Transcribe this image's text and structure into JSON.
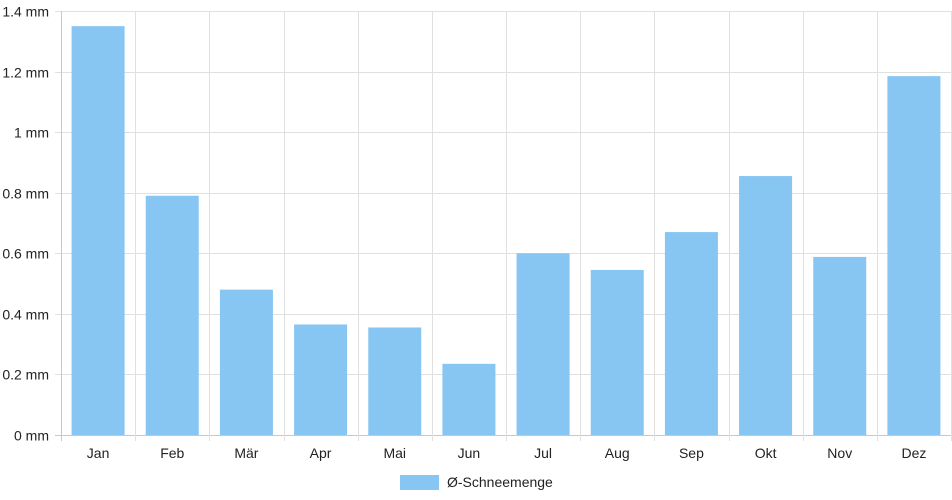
{
  "chart_data": {
    "type": "bar",
    "categories": [
      "Jan",
      "Feb",
      "Mär",
      "Apr",
      "Mai",
      "Jun",
      "Jul",
      "Aug",
      "Sep",
      "Okt",
      "Nov",
      "Dez"
    ],
    "series": [
      {
        "name": "Ø-Schneemenge",
        "values": [
          1.35,
          0.79,
          0.48,
          0.365,
          0.355,
          0.235,
          0.6,
          0.545,
          0.67,
          0.855,
          0.588,
          1.185
        ],
        "color": "#87c5f2"
      }
    ],
    "ylim": [
      0,
      1.4
    ],
    "yticks": [
      "0 mm",
      "0.2 mm",
      "0.4 mm",
      "0.6 mm",
      "0.8 mm",
      "1 mm",
      "1.2 mm",
      "1.4 mm"
    ],
    "grid": true,
    "legend_position": "bottom-center",
    "grid_color": "#e0e0e0",
    "axis_color": "#c8c8c8"
  }
}
